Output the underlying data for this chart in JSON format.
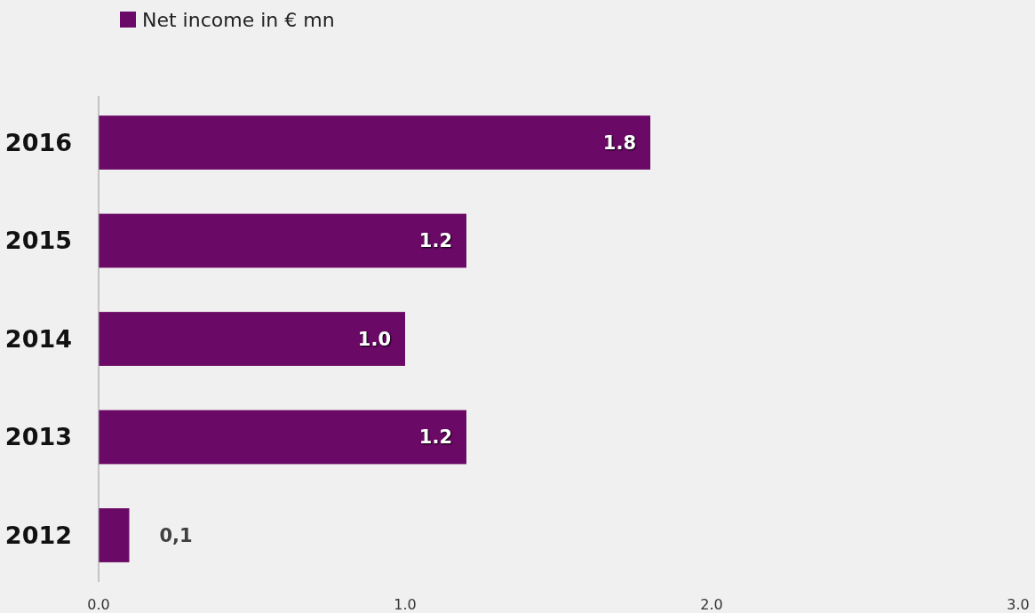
{
  "chart_data": {
    "type": "bar",
    "orientation": "horizontal",
    "categories": [
      "2016",
      "2015",
      "2014",
      "2013",
      "2012"
    ],
    "series": [
      {
        "name": "Net income in € mn",
        "color": "#6b0a66",
        "values": [
          1.8,
          1.2,
          1.0,
          1.2,
          0.1
        ],
        "value_labels": [
          "1.8",
          "1.2",
          "1.0",
          "1.2",
          "0,1"
        ]
      }
    ],
    "xlim": [
      0,
      3
    ],
    "xticks": [
      {
        "value": 0,
        "label": "0.0"
      },
      {
        "value": 1,
        "label": "1.0"
      },
      {
        "value": 2,
        "label": "2.0"
      },
      {
        "value": 3,
        "label": "3.0"
      }
    ],
    "grid": false,
    "legend": "top left"
  }
}
